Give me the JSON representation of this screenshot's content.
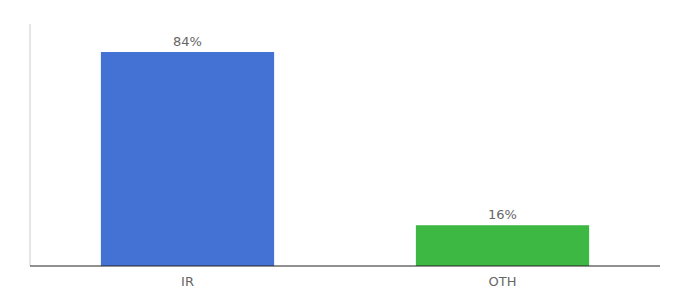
{
  "chart_data": {
    "type": "bar",
    "categories": [
      "IR",
      "OTH"
    ],
    "values": [
      84,
      16
    ],
    "value_labels": [
      "84%",
      "16%"
    ],
    "colors": [
      "#4472d4",
      "#3cb843"
    ],
    "ylim": [
      0,
      95
    ],
    "data_labels": true,
    "tick_labels": "x"
  }
}
